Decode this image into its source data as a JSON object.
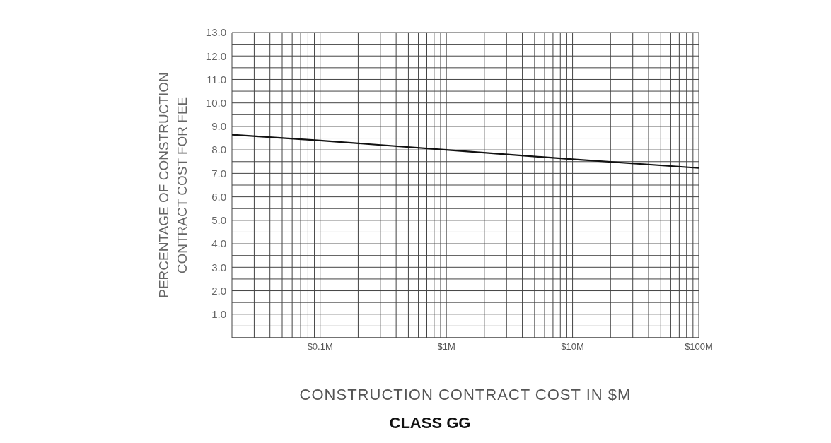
{
  "chart_data": {
    "type": "line",
    "title": "CLASS GG",
    "xlabel": "CONSTRUCTION CONTRACT COST IN $M",
    "ylabel": "PERCENTAGE OF CONSTRUCTION\nCONTRACT COST FOR FEE",
    "x": [
      0.02,
      0.1,
      1,
      10,
      100
    ],
    "series": [
      {
        "color": "#111111",
        "values": [
          8.65,
          8.4,
          8.0,
          7.6,
          7.23
        ]
      }
    ],
    "log": "x",
    "xlim": [
      0.02,
      100
    ],
    "ylim": [
      0,
      13
    ],
    "xticks": [
      {
        "value": 0.02,
        "label": null
      },
      {
        "value": 0.03,
        "label": null
      },
      {
        "value": 0.04,
        "label": null
      },
      {
        "value": 0.05,
        "label": null
      },
      {
        "value": 0.06,
        "label": null
      },
      {
        "value": 0.07,
        "label": null
      },
      {
        "value": 0.08,
        "label": null
      },
      {
        "value": 0.09,
        "label": null
      },
      {
        "value": 0.1,
        "label": "$0.1M"
      },
      {
        "value": 0.2,
        "label": null
      },
      {
        "value": 0.3,
        "label": null
      },
      {
        "value": 0.4,
        "label": null
      },
      {
        "value": 0.5,
        "label": null
      },
      {
        "value": 0.6,
        "label": null
      },
      {
        "value": 0.7,
        "label": null
      },
      {
        "value": 0.8,
        "label": null
      },
      {
        "value": 0.9,
        "label": null
      },
      {
        "value": 1,
        "label": "$1M"
      },
      {
        "value": 2,
        "label": null
      },
      {
        "value": 3,
        "label": null
      },
      {
        "value": 4,
        "label": null
      },
      {
        "value": 5,
        "label": null
      },
      {
        "value": 6,
        "label": null
      },
      {
        "value": 7,
        "label": null
      },
      {
        "value": 8,
        "label": null
      },
      {
        "value": 9,
        "label": null
      },
      {
        "value": 10,
        "label": "$10M"
      },
      {
        "value": 20,
        "label": null
      },
      {
        "value": 30,
        "label": null
      },
      {
        "value": 40,
        "label": null
      },
      {
        "value": 50,
        "label": null
      },
      {
        "value": 60,
        "label": null
      },
      {
        "value": 70,
        "label": null
      },
      {
        "value": 80,
        "label": null
      },
      {
        "value": 90,
        "label": null
      },
      {
        "value": 100,
        "label": "$100M"
      }
    ],
    "yticks": [
      {
        "value": 0,
        "label": null
      },
      {
        "value": 0.5,
        "label": null
      },
      {
        "value": 1,
        "label": "1.0"
      },
      {
        "value": 1.5,
        "label": null
      },
      {
        "value": 2,
        "label": "2.0"
      },
      {
        "value": 2.5,
        "label": null
      },
      {
        "value": 3,
        "label": "3.0"
      },
      {
        "value": 3.5,
        "label": null
      },
      {
        "value": 4,
        "label": "4.0"
      },
      {
        "value": 4.5,
        "label": null
      },
      {
        "value": 5,
        "label": "5.0"
      },
      {
        "value": 5.5,
        "label": null
      },
      {
        "value": 6,
        "label": "6.0"
      },
      {
        "value": 6.5,
        "label": null
      },
      {
        "value": 7,
        "label": "7.0"
      },
      {
        "value": 7.5,
        "label": null
      },
      {
        "value": 8,
        "label": "8.0"
      },
      {
        "value": 8.5,
        "label": null
      },
      {
        "value": 9,
        "label": "9.0"
      },
      {
        "value": 9.5,
        "label": null
      },
      {
        "value": 10,
        "label": "10.0"
      },
      {
        "value": 10.5,
        "label": null
      },
      {
        "value": 11,
        "label": "11.0"
      },
      {
        "value": 11.5,
        "label": null
      },
      {
        "value": 12,
        "label": "12.0"
      },
      {
        "value": 12.5,
        "label": null
      },
      {
        "value": 13,
        "label": "13.0"
      }
    ],
    "grid": true,
    "marker": "none",
    "line_style": "solid"
  }
}
